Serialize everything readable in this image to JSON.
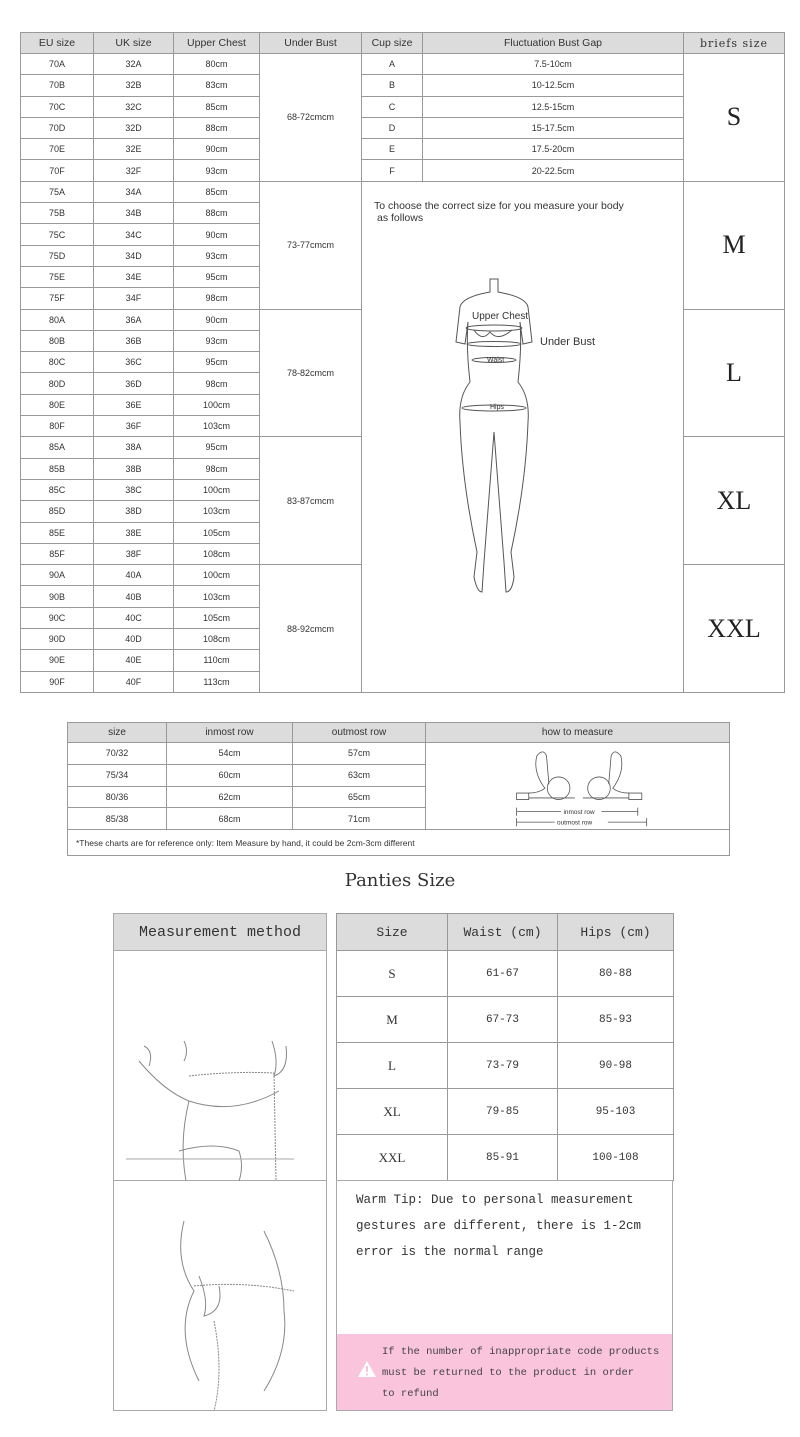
{
  "bra_table": {
    "headers": [
      "EU size",
      "UK size",
      "Upper Chest",
      "Under Bust",
      "Cup size",
      "Fluctuation Bust Gap",
      "briefs size"
    ],
    "cups": [
      "A",
      "B",
      "C",
      "D",
      "E",
      "F"
    ],
    "gaps": [
      "7.5-10cm",
      "10-12.5cm",
      "12.5-15cm",
      "15-17.5cm",
      "17.5-20cm",
      "20-22.5cm"
    ],
    "groups": [
      {
        "under_bust": "68-72cmcm",
        "briefs": "S",
        "rows": [
          [
            "70A",
            "32A",
            "80cm"
          ],
          [
            "70B",
            "32B",
            "83cm"
          ],
          [
            "70C",
            "32C",
            "85cm"
          ],
          [
            "70D",
            "32D",
            "88cm"
          ],
          [
            "70E",
            "32E",
            "90cm"
          ],
          [
            "70F",
            "32F",
            "93cm"
          ]
        ]
      },
      {
        "under_bust": "73-77cmcm",
        "briefs": "M",
        "rows": [
          [
            "75A",
            "34A",
            "85cm"
          ],
          [
            "75B",
            "34B",
            "88cm"
          ],
          [
            "75C",
            "34C",
            "90cm"
          ],
          [
            "75D",
            "34D",
            "93cm"
          ],
          [
            "75E",
            "34E",
            "95cm"
          ],
          [
            "75F",
            "34F",
            "98cm"
          ]
        ]
      },
      {
        "under_bust": "78-82cmcm",
        "briefs": "L",
        "rows": [
          [
            "80A",
            "36A",
            "90cm"
          ],
          [
            "80B",
            "36B",
            "93cm"
          ],
          [
            "80C",
            "36C",
            "95cm"
          ],
          [
            "80D",
            "36D",
            "98cm"
          ],
          [
            "80E",
            "36E",
            "100cm"
          ],
          [
            "80F",
            "36F",
            "103cm"
          ]
        ]
      },
      {
        "under_bust": "83-87cmcm",
        "briefs": "XL",
        "rows": [
          [
            "85A",
            "38A",
            "95cm"
          ],
          [
            "85B",
            "38B",
            "98cm"
          ],
          [
            "85C",
            "38C",
            "100cm"
          ],
          [
            "85D",
            "38D",
            "103cm"
          ],
          [
            "85E",
            "38E",
            "105cm"
          ],
          [
            "85F",
            "38F",
            "108cm"
          ]
        ]
      },
      {
        "under_bust": "88-92cmcm",
        "briefs": "XXL",
        "rows": [
          [
            "90A",
            "40A",
            "100cm"
          ],
          [
            "90B",
            "40B",
            "103cm"
          ],
          [
            "90C",
            "40C",
            "105cm"
          ],
          [
            "90D",
            "40D",
            "108cm"
          ],
          [
            "90E",
            "40E",
            "110cm"
          ],
          [
            "90F",
            "40F",
            "113cm"
          ]
        ]
      }
    ],
    "figure": {
      "instruction_line1": "To choose the correct size for you measure your body",
      "instruction_line2": "as follows",
      "labels": {
        "upper_chest": "Upper Chest",
        "under_bust": "Under Bust",
        "waist": "Waist",
        "hips": "Hips"
      }
    }
  },
  "band_table": {
    "headers": [
      "size",
      "inmost row",
      "outmost row",
      "how to measure"
    ],
    "rows": [
      [
        "70/32",
        "54cm",
        "57cm"
      ],
      [
        "75/34",
        "60cm",
        "63cm"
      ],
      [
        "80/36",
        "62cm",
        "65cm"
      ],
      [
        "85/38",
        "68cm",
        "71cm"
      ]
    ],
    "diagram": {
      "inmost": "inmost row",
      "outmost": "outmost row"
    },
    "note": "*These charts are for reference only: Item Measure by hand, it could be 2cm-3cm different"
  },
  "panties": {
    "title": "Panties Size",
    "method_header": "Measurement method",
    "headers": [
      "Size",
      "Waist (cm)",
      "Hips (cm)"
    ],
    "rows": [
      [
        "S",
        "61-67",
        "80-88"
      ],
      [
        "M",
        "67-73",
        "85-93"
      ],
      [
        "L",
        "73-79",
        "90-98"
      ],
      [
        "XL",
        "79-85",
        "95-103"
      ],
      [
        "XXL",
        "85-91",
        "100-108"
      ]
    ],
    "tip": [
      "Warm Tip: Due to personal measurement",
      "gestures are different, there is 1-2cm",
      "error is the normal range"
    ],
    "warning": [
      "If the number of inappropriate code products",
      "must be returned to the product in order",
      "to refund"
    ],
    "warning_color": "#f9c4dc"
  }
}
